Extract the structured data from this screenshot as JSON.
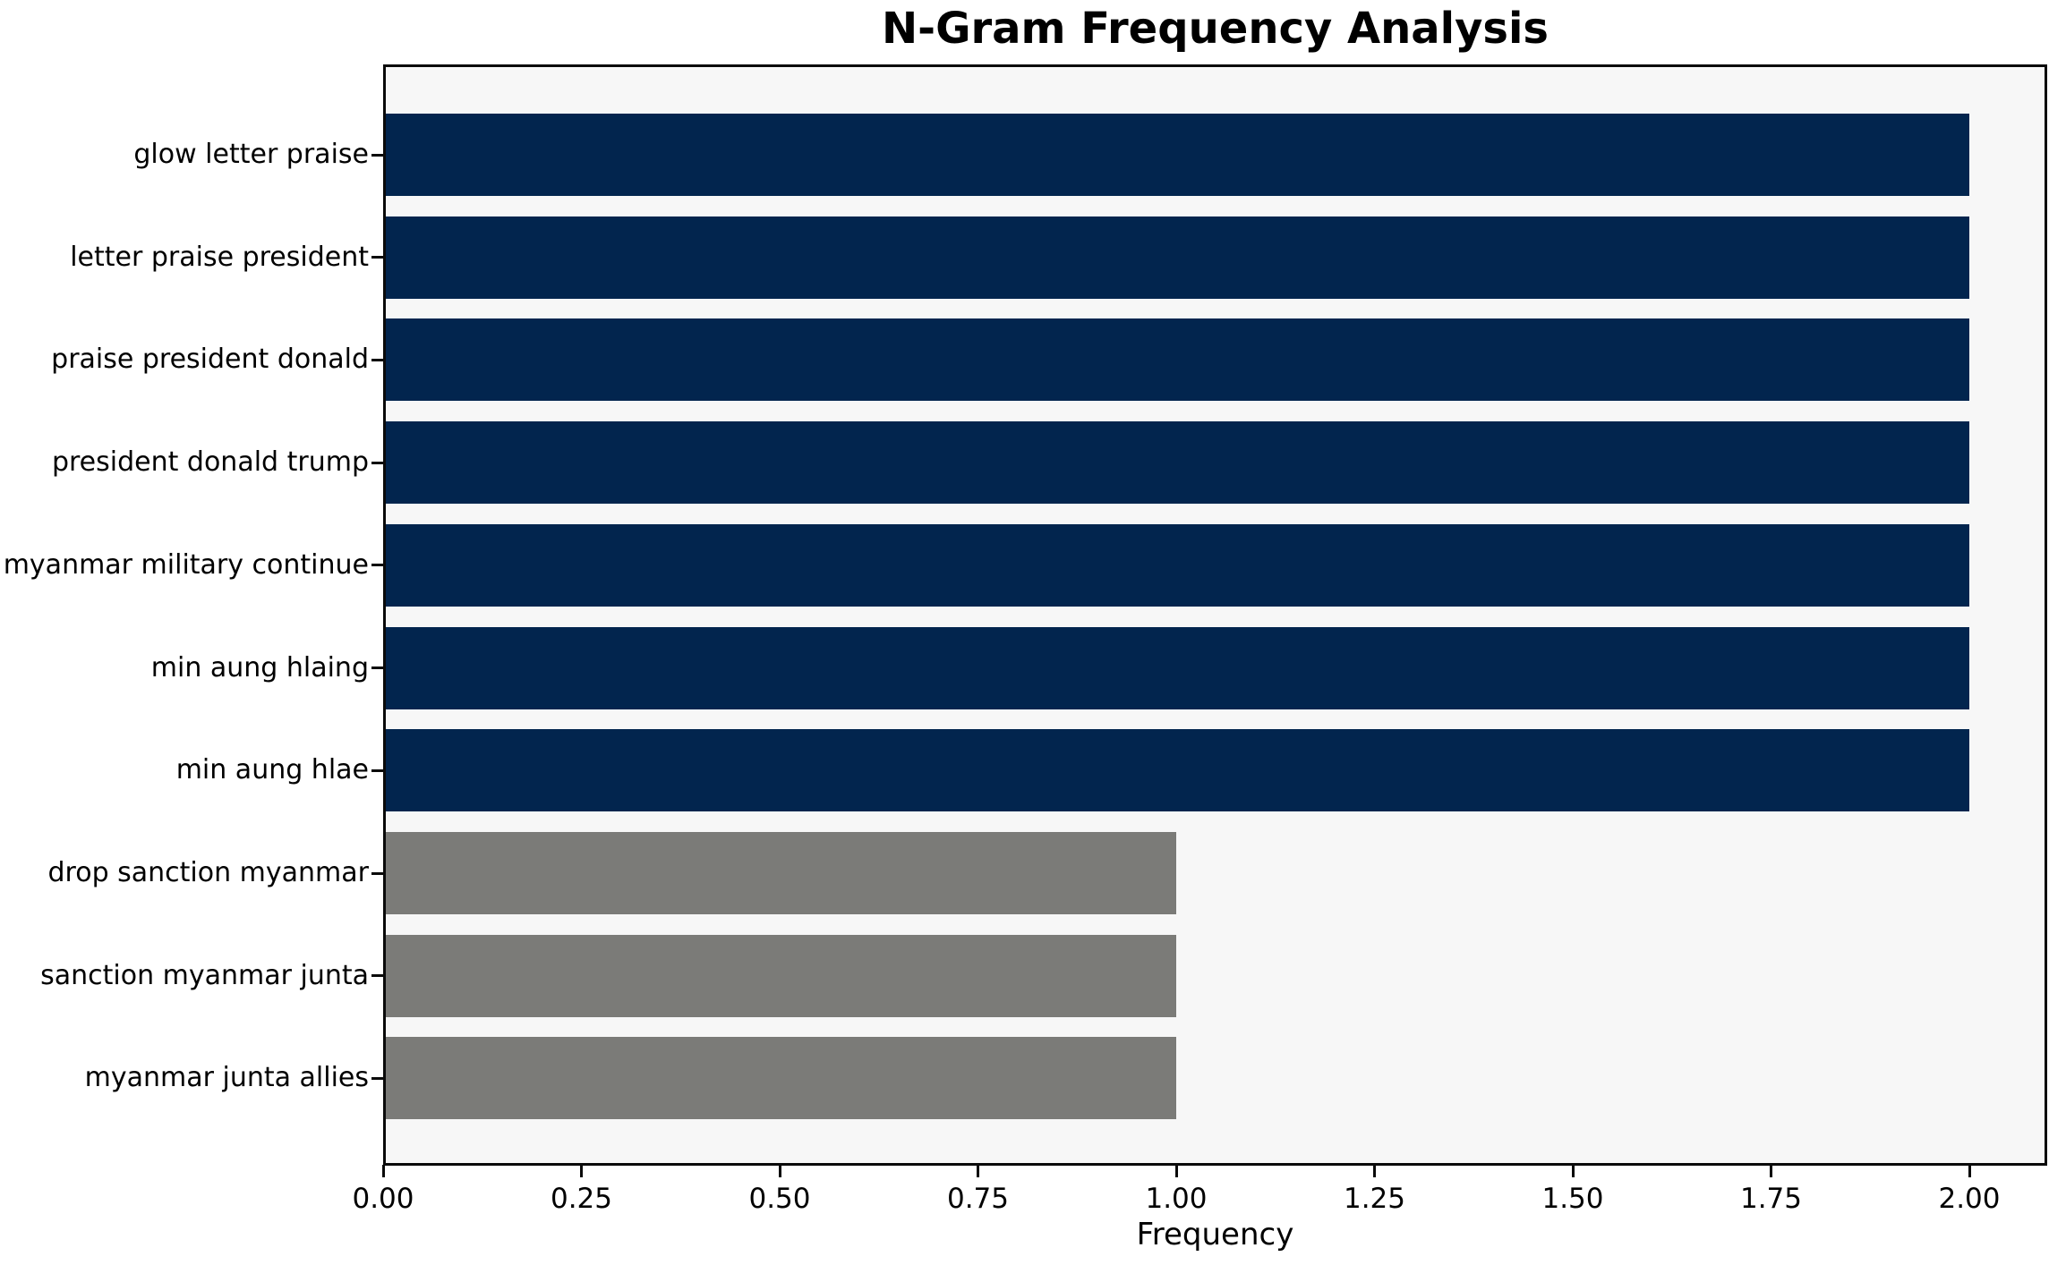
{
  "figure": {
    "background": "#ffffff"
  },
  "chart_data": {
    "type": "bar",
    "orientation": "horizontal",
    "title": "N-Gram Frequency Analysis",
    "xlabel": "Frequency",
    "ylabel": "",
    "categories": [
      "glow letter praise",
      "letter praise president",
      "praise president donald",
      "president donald trump",
      "myanmar military continue",
      "min aung hlaing",
      "min aung hlae",
      "drop sanction myanmar",
      "sanction myanmar junta",
      "myanmar junta allies"
    ],
    "values": [
      2,
      2,
      2,
      2,
      2,
      2,
      2,
      1,
      1,
      1
    ],
    "bar_colors": [
      "#02254e",
      "#02254e",
      "#02254e",
      "#02254e",
      "#02254e",
      "#02254e",
      "#02254e",
      "#7b7b78",
      "#7b7b78",
      "#7b7b78"
    ],
    "xlim": [
      0,
      2.1
    ],
    "xticks": [
      0,
      0.25,
      0.5,
      0.75,
      1.0,
      1.25,
      1.5,
      1.75,
      2.0
    ],
    "xtick_labels": [
      "0.00",
      "0.25",
      "0.50",
      "0.75",
      "1.00",
      "1.25",
      "1.50",
      "1.75",
      "2.00"
    ],
    "grid": false,
    "legend_visible": false,
    "plot_background": "#f7f7f7",
    "spine_color": "#0a0a0a",
    "text_color": "#000000"
  }
}
